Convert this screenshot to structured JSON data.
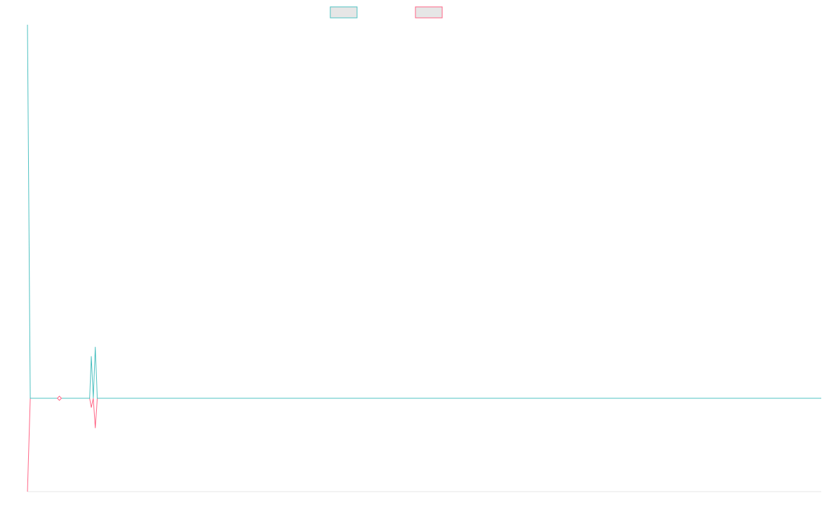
{
  "colors": {
    "series_a": "#4bc0c0",
    "series_b": "#ff6384",
    "swatch_fill": "#e6e6e6",
    "axis": "#e6e6e6"
  },
  "chart_data": {
    "type": "line",
    "title": "",
    "xlabel": "",
    "ylabel": "",
    "grid": false,
    "legend": "top-center",
    "xlim": [
      0,
      199
    ],
    "ylim": [
      -1,
      4
    ],
    "series": [
      {
        "color": "#4bc0c0",
        "points": [
          [
            0,
            4.0
          ],
          [
            0.7,
            0.0
          ],
          [
            8,
            0.0
          ],
          [
            15.6,
            0.0
          ],
          [
            16,
            0.45
          ],
          [
            16.5,
            0.0
          ],
          [
            17,
            0.55
          ],
          [
            17.5,
            0.0
          ],
          [
            199,
            0.0
          ]
        ]
      },
      {
        "color": "#ff6384",
        "points": [
          [
            0,
            -1.0
          ],
          [
            0.7,
            0.0
          ],
          [
            8,
            0.0
          ],
          [
            15.6,
            0.0
          ],
          [
            16,
            -0.1
          ],
          [
            16.5,
            0.0
          ],
          [
            17,
            -0.32
          ],
          [
            17.5,
            0.0
          ],
          [
            199,
            0.0
          ]
        ]
      }
    ],
    "markers": [
      {
        "x": 8,
        "y": 0.0
      }
    ]
  }
}
